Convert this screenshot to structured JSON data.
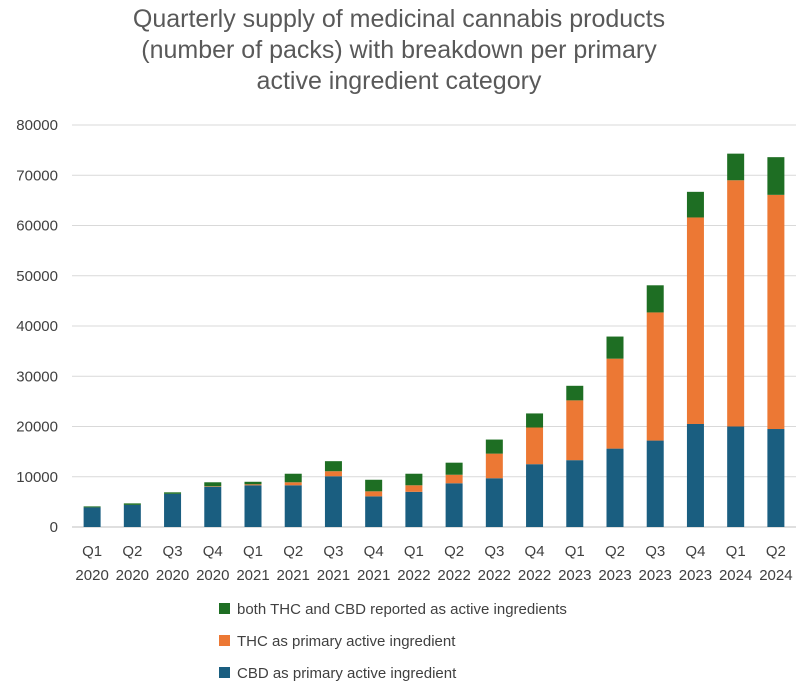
{
  "chart_data": {
    "type": "bar",
    "stacked": true,
    "title_lines": [
      "Quarterly supply of medicinal cannabis products",
      "(number of packs) with breakdown per primary",
      "active  ingredient category"
    ],
    "xlabel": "",
    "ylabel": "",
    "ylim": [
      0,
      80000
    ],
    "yticks": [
      "0",
      "10000",
      "20000",
      "30000",
      "40000",
      "50000",
      "60000",
      "70000",
      "80000"
    ],
    "grid": true,
    "legend_position": "bottom",
    "categories": [
      [
        "Q1",
        "2020"
      ],
      [
        "Q2",
        "2020"
      ],
      [
        "Q3",
        "2020"
      ],
      [
        "Q4",
        "2020"
      ],
      [
        "Q1",
        "2021"
      ],
      [
        "Q2",
        "2021"
      ],
      [
        "Q3",
        "2021"
      ],
      [
        "Q4",
        "2021"
      ],
      [
        "Q1",
        "2022"
      ],
      [
        "Q2",
        "2022"
      ],
      [
        "Q3",
        "2022"
      ],
      [
        "Q4",
        "2022"
      ],
      [
        "Q1",
        "2023"
      ],
      [
        "Q2",
        "2023"
      ],
      [
        "Q3",
        "2023"
      ],
      [
        "Q4",
        "2023"
      ],
      [
        "Q1",
        "2024"
      ],
      [
        "Q2",
        "2024"
      ]
    ],
    "series": [
      {
        "name": "CBD as primary active ingredient",
        "color": "#1a5e80",
        "values": [
          3900,
          4400,
          6600,
          8000,
          8300,
          8300,
          10100,
          6100,
          7000,
          8700,
          9700,
          12500,
          13300,
          15600,
          17200,
          20500,
          20000,
          19500
        ]
      },
      {
        "name": "THC as primary active ingredient",
        "color": "#ec7834",
        "values": [
          0,
          0,
          0,
          100,
          200,
          600,
          1000,
          1000,
          1300,
          1700,
          4900,
          7300,
          11900,
          17900,
          25500,
          41100,
          49000,
          46600
        ]
      },
      {
        "name": "both THC and CBD reported as active ingredients",
        "color": "#1e6e23",
        "values": [
          200,
          300,
          300,
          800,
          500,
          1700,
          2000,
          2300,
          2300,
          2400,
          2800,
          2800,
          2900,
          4400,
          5400,
          5100,
          5300,
          7500
        ]
      }
    ],
    "legend_order": [
      2,
      1,
      0
    ]
  }
}
